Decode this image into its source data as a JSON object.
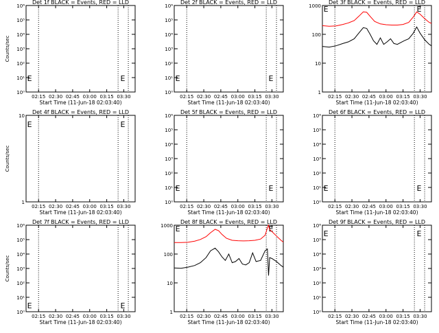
{
  "figure": {
    "foreground": "#000000",
    "background": "#ffffff"
  },
  "chart_data": [
    {
      "type": "line",
      "title": "Det 1f BLACK = Events, RED = LLD",
      "xlabel": "Start Time (11-Jun-18 02:03:40)",
      "ylabel": "Counts/sec",
      "yscale": "log",
      "ylim": [
        1,
        1000000
      ],
      "yticks": [
        "10⁰",
        "10¹",
        "10²",
        "10³",
        "10⁴",
        "10⁵",
        "10⁶"
      ],
      "xlim": [
        "02:04",
        "03:40"
      ],
      "xticks": [
        "02:15",
        "02:30",
        "02:45",
        "03:00",
        "03:15",
        "03:30"
      ],
      "vlines": [
        "02:15",
        "03:25",
        "03:34"
      ],
      "markers": [
        {
          "text": "E",
          "x": "02:05",
          "y": 10
        },
        {
          "text": "E",
          "x": "03:27",
          "y": 10
        }
      ],
      "series": []
    },
    {
      "type": "line",
      "title": "Det 2f BLACK = Events, RED = LLD",
      "xlabel": "Start Time (11-Jun-18 02:03:40)",
      "ylabel": "",
      "yscale": "log",
      "ylim": [
        1,
        1000000
      ],
      "yticks": [
        "10⁰",
        "10¹",
        "10²",
        "10³",
        "10⁴",
        "10⁵",
        "10⁶"
      ],
      "xlim": [
        "02:04",
        "03:40"
      ],
      "xticks": [
        "02:15",
        "02:30",
        "02:45",
        "03:00",
        "03:15",
        "03:30"
      ],
      "vlines": [
        "02:15",
        "03:25",
        "03:34"
      ],
      "markers": [
        {
          "text": "E",
          "x": "02:05",
          "y": 10
        },
        {
          "text": "E",
          "x": "03:27",
          "y": 10
        }
      ],
      "series": []
    },
    {
      "type": "line",
      "title": "Det 3f BLACK = Events, RED = LLD",
      "xlabel": "Start Time (11-Jun-18 02:03:40)",
      "ylabel": "",
      "yscale": "log",
      "ylim": [
        1,
        1000
      ],
      "yticks": [
        "1",
        "10",
        "100",
        "1000"
      ],
      "xlim": [
        "02:04",
        "03:40"
      ],
      "xticks": [
        "02:15",
        "02:30",
        "02:45",
        "03:00",
        "03:15",
        "03:30"
      ],
      "vlines": [
        "02:15",
        "03:25",
        "03:34"
      ],
      "markers": [
        {
          "text": "E",
          "x": "02:05",
          "y": 800
        },
        {
          "text": "E",
          "x": "03:27",
          "y": 800
        }
      ],
      "series": [
        {
          "color": "#ff0000",
          "x": [
            "02:04",
            "02:10",
            "02:16",
            "02:22",
            "02:27",
            "02:32",
            "02:36",
            "02:40",
            "02:43",
            "02:46",
            "02:50",
            "02:55",
            "03:00",
            "03:05",
            "03:10",
            "03:15",
            "03:20",
            "03:24",
            "03:27",
            "03:30",
            "03:34",
            "03:38",
            "03:40"
          ],
          "y": [
            200,
            190,
            195,
            220,
            250,
            300,
            420,
            600,
            580,
            420,
            280,
            230,
            215,
            210,
            210,
            220,
            260,
            400,
            600,
            500,
            350,
            260,
            240
          ]
        },
        {
          "color": "#000000",
          "x": [
            "02:04",
            "02:10",
            "02:16",
            "02:22",
            "02:27",
            "02:32",
            "02:36",
            "02:40",
            "02:43",
            "02:46",
            "02:49",
            "02:52",
            "02:55",
            "02:58",
            "03:01",
            "03:04",
            "03:07",
            "03:10",
            "03:13",
            "03:16",
            "03:20",
            "03:24",
            "03:27",
            "03:30",
            "03:34",
            "03:38",
            "03:40"
          ],
          "y": [
            38,
            36,
            40,
            48,
            55,
            70,
            110,
            170,
            160,
            100,
            60,
            45,
            75,
            45,
            55,
            70,
            48,
            45,
            52,
            60,
            70,
            110,
            180,
            110,
            65,
            45,
            40
          ]
        }
      ]
    },
    {
      "type": "line",
      "title": "Det 4f BLACK = Events, RED = LLD",
      "xlabel": "Start Time (11-Jun-18 02:03:40)",
      "ylabel": "Counts/sec",
      "yscale": "log",
      "ylim": [
        1,
        10
      ],
      "yticks": [
        "1",
        "10"
      ],
      "xlim": [
        "02:04",
        "03:40"
      ],
      "xticks": [
        "02:15",
        "02:30",
        "02:45",
        "03:00",
        "03:15",
        "03:30"
      ],
      "vlines": [
        "02:15",
        "03:25",
        "03:34"
      ],
      "markers": [
        {
          "text": "E",
          "x": "02:05",
          "y": 8
        },
        {
          "text": "E",
          "x": "03:27",
          "y": 8
        }
      ],
      "series": []
    },
    {
      "type": "line",
      "title": "Det 5f BLACK = Events, RED = LLD",
      "xlabel": "Start Time (11-Jun-18 02:03:40)",
      "ylabel": "",
      "yscale": "log",
      "ylim": [
        1,
        1000000
      ],
      "yticks": [
        "10⁰",
        "10¹",
        "10²",
        "10³",
        "10⁴",
        "10⁵",
        "10⁶"
      ],
      "xlim": [
        "02:04",
        "03:40"
      ],
      "xticks": [
        "02:15",
        "02:30",
        "02:45",
        "03:00",
        "03:15",
        "03:30"
      ],
      "vlines": [
        "02:15",
        "03:25",
        "03:34"
      ],
      "markers": [
        {
          "text": "E",
          "x": "02:05",
          "y": 10
        },
        {
          "text": "E",
          "x": "03:27",
          "y": 10
        }
      ],
      "series": []
    },
    {
      "type": "line",
      "title": "Det 6f BLACK = Events, RED = LLD",
      "xlabel": "Start Time (11-Jun-18 02:03:40)",
      "ylabel": "",
      "yscale": "log",
      "ylim": [
        1,
        1000000
      ],
      "yticks": [
        "10⁰",
        "10¹",
        "10²",
        "10³",
        "10⁴",
        "10⁵",
        "10⁶"
      ],
      "xlim": [
        "02:04",
        "03:40"
      ],
      "xticks": [
        "02:15",
        "02:30",
        "02:45",
        "03:00",
        "03:15",
        "03:30"
      ],
      "vlines": [
        "02:15",
        "03:25",
        "03:34"
      ],
      "markers": [
        {
          "text": "E",
          "x": "02:05",
          "y": 10
        },
        {
          "text": "E",
          "x": "03:27",
          "y": 10
        }
      ],
      "series": []
    },
    {
      "type": "line",
      "title": "Det 7f BLACK = Events, RED = LLD",
      "xlabel": "Start Time (11-Jun-18 02:03:40)",
      "ylabel": "Counts/sec",
      "yscale": "log",
      "ylim": [
        1,
        1000000
      ],
      "yticks": [
        "10⁰",
        "10¹",
        "10²",
        "10³",
        "10⁴",
        "10⁵",
        "10⁶"
      ],
      "xlim": [
        "02:04",
        "03:40"
      ],
      "xticks": [
        "02:15",
        "02:30",
        "02:45",
        "03:00",
        "03:15",
        "03:30"
      ],
      "vlines": [
        "02:15",
        "03:25",
        "03:34"
      ],
      "markers": [
        {
          "text": "E",
          "x": "02:05",
          "y": 3
        },
        {
          "text": "E",
          "x": "03:27",
          "y": 3
        }
      ],
      "series": []
    },
    {
      "type": "line",
      "title": "Det 8f BLACK = Events, RED = LLD",
      "xlabel": "Start Time (11-Jun-18 02:03:40)",
      "ylabel": "",
      "yscale": "log",
      "ylim": [
        1,
        1000
      ],
      "yticks": [
        "1",
        "10",
        "100",
        "1000"
      ],
      "xlim": [
        "02:04",
        "03:40"
      ],
      "xticks": [
        "02:15",
        "02:30",
        "02:45",
        "03:00",
        "03:15",
        "03:30"
      ],
      "vlines": [
        "02:15",
        "03:25",
        "03:34"
      ],
      "markers": [
        {
          "text": "E",
          "x": "02:05",
          "y": 800
        },
        {
          "text": "E",
          "x": "03:27",
          "y": 800
        }
      ],
      "series": [
        {
          "color": "#ff0000",
          "x": [
            "02:04",
            "02:10",
            "02:16",
            "02:22",
            "02:27",
            "02:32",
            "02:36",
            "02:40",
            "02:43",
            "02:46",
            "02:50",
            "02:55",
            "03:00",
            "03:05",
            "03:10",
            "03:15",
            "03:20",
            "03:24",
            "03:26",
            "03:27",
            "03:28",
            "03:30",
            "03:34",
            "03:38",
            "03:40"
          ],
          "y": [
            250,
            250,
            255,
            280,
            320,
            400,
            550,
            720,
            650,
            480,
            350,
            300,
            290,
            285,
            290,
            300,
            330,
            450,
            800,
            1000,
            700,
            600,
            420,
            300,
            260
          ]
        },
        {
          "color": "#000000",
          "x": [
            "02:04",
            "02:10",
            "02:16",
            "02:22",
            "02:27",
            "02:32",
            "02:36",
            "02:40",
            "02:43",
            "02:46",
            "02:49",
            "02:52",
            "02:55",
            "02:58",
            "03:01",
            "03:04",
            "03:07",
            "03:10",
            "03:13",
            "03:16",
            "03:20",
            "03:24",
            "03:26",
            "03:27",
            "03:28",
            "03:30",
            "03:34",
            "03:38",
            "03:40"
          ],
          "y": [
            33,
            32,
            35,
            40,
            50,
            75,
            130,
            160,
            120,
            80,
            60,
            100,
            50,
            55,
            70,
            45,
            42,
            50,
            110,
            55,
            60,
            130,
            150,
            18,
            75,
            70,
            55,
            40,
            35
          ]
        }
      ]
    },
    {
      "type": "line",
      "title": "Det 9f BLACK = Events, RED = LLD",
      "xlabel": "Start Time (11-Jun-18 02:03:40)",
      "ylabel": "",
      "yscale": "log",
      "ylim": [
        1,
        1000000
      ],
      "yticks": [
        "10⁰",
        "10¹",
        "10²",
        "10³",
        "10⁴",
        "10⁵",
        "10⁶"
      ],
      "xlim": [
        "02:04",
        "03:40"
      ],
      "xticks": [
        "02:15",
        "02:30",
        "02:45",
        "03:00",
        "03:15",
        "03:30"
      ],
      "vlines": [
        "02:15",
        "03:25",
        "03:34"
      ],
      "markers": [
        {
          "text": "E",
          "x": "02:05",
          "y": 300000
        },
        {
          "text": "E",
          "x": "03:27",
          "y": 300000
        }
      ],
      "series": []
    }
  ]
}
